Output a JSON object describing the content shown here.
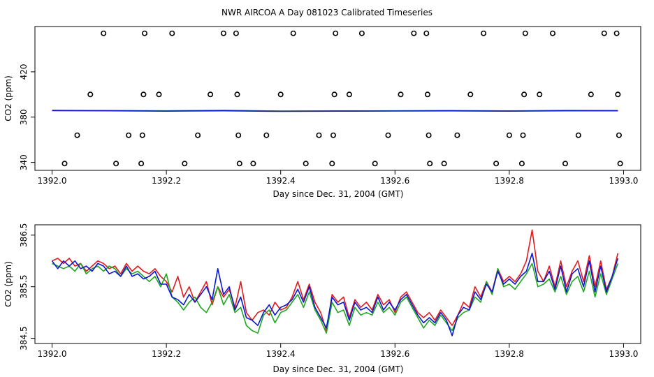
{
  "title": "NWR AIRCOA A  Day 081023  Calibrated Timeseries",
  "chart_data": [
    {
      "type": "scatter+line",
      "xlabel": "Day since Dec. 31, 2004 (GMT)",
      "ylabel": "CO2 (ppm)",
      "xlim": [
        1391.97,
        1393.03
      ],
      "ylim": [
        333,
        460
      ],
      "xticks": [
        1392.0,
        1392.2,
        1392.4,
        1392.6,
        1392.8,
        1393.0
      ],
      "xtick_labels": [
        "1392.0",
        "1392.2",
        "1392.4",
        "1392.6",
        "1392.8",
        "1393.0"
      ],
      "yticks": [
        340,
        380,
        420
      ],
      "ytick_labels": [
        "340",
        "380",
        "420"
      ],
      "points": [
        {
          "x": 1392.022,
          "y": 339
        },
        {
          "x": 1392.044,
          "y": 364
        },
        {
          "x": 1392.067,
          "y": 400
        },
        {
          "x": 1392.09,
          "y": 454
        },
        {
          "x": 1392.112,
          "y": 339
        },
        {
          "x": 1392.134,
          "y": 364
        },
        {
          "x": 1392.156,
          "y": 339
        },
        {
          "x": 1392.158,
          "y": 364
        },
        {
          "x": 1392.16,
          "y": 400
        },
        {
          "x": 1392.162,
          "y": 454
        },
        {
          "x": 1392.187,
          "y": 400
        },
        {
          "x": 1392.21,
          "y": 454
        },
        {
          "x": 1392.232,
          "y": 339
        },
        {
          "x": 1392.255,
          "y": 364
        },
        {
          "x": 1392.277,
          "y": 400
        },
        {
          "x": 1392.3,
          "y": 454
        },
        {
          "x": 1392.322,
          "y": 454
        },
        {
          "x": 1392.324,
          "y": 400
        },
        {
          "x": 1392.326,
          "y": 364
        },
        {
          "x": 1392.328,
          "y": 339
        },
        {
          "x": 1392.352,
          "y": 339
        },
        {
          "x": 1392.375,
          "y": 364
        },
        {
          "x": 1392.4,
          "y": 400
        },
        {
          "x": 1392.422,
          "y": 454
        },
        {
          "x": 1392.444,
          "y": 339
        },
        {
          "x": 1392.467,
          "y": 364
        },
        {
          "x": 1392.49,
          "y": 339
        },
        {
          "x": 1392.492,
          "y": 364
        },
        {
          "x": 1392.494,
          "y": 400
        },
        {
          "x": 1392.496,
          "y": 454
        },
        {
          "x": 1392.52,
          "y": 400
        },
        {
          "x": 1392.542,
          "y": 454
        },
        {
          "x": 1392.565,
          "y": 339
        },
        {
          "x": 1392.588,
          "y": 364
        },
        {
          "x": 1392.61,
          "y": 400
        },
        {
          "x": 1392.633,
          "y": 454
        },
        {
          "x": 1392.655,
          "y": 454
        },
        {
          "x": 1392.657,
          "y": 400
        },
        {
          "x": 1392.659,
          "y": 364
        },
        {
          "x": 1392.661,
          "y": 339
        },
        {
          "x": 1392.686,
          "y": 339
        },
        {
          "x": 1392.709,
          "y": 364
        },
        {
          "x": 1392.732,
          "y": 400
        },
        {
          "x": 1392.755,
          "y": 454
        },
        {
          "x": 1392.777,
          "y": 339
        },
        {
          "x": 1392.8,
          "y": 364
        },
        {
          "x": 1392.822,
          "y": 339
        },
        {
          "x": 1392.824,
          "y": 364
        },
        {
          "x": 1392.826,
          "y": 400
        },
        {
          "x": 1392.828,
          "y": 454
        },
        {
          "x": 1392.853,
          "y": 400
        },
        {
          "x": 1392.876,
          "y": 454
        },
        {
          "x": 1392.898,
          "y": 339
        },
        {
          "x": 1392.921,
          "y": 364
        },
        {
          "x": 1392.943,
          "y": 400
        },
        {
          "x": 1392.966,
          "y": 454
        },
        {
          "x": 1392.988,
          "y": 454
        },
        {
          "x": 1392.99,
          "y": 400
        },
        {
          "x": 1392.992,
          "y": 364
        },
        {
          "x": 1392.994,
          "y": 339
        }
      ],
      "baseline": {
        "x": [
          1392.0,
          1392.1,
          1392.2,
          1392.3,
          1392.4,
          1392.5,
          1392.6,
          1392.7,
          1392.8,
          1392.9,
          1392.99
        ],
        "series": [
          {
            "name": "red",
            "color": "#e41a1c",
            "values": [
              386,
              385.8,
              385.6,
              386,
              385.4,
              385.5,
              385.6,
              385.8,
              385.5,
              385.9,
              385.8
            ]
          },
          {
            "name": "green",
            "color": "#1fa81f",
            "values": [
              385.9,
              385.7,
              385.5,
              385.8,
              385.3,
              385.4,
              385.5,
              385.6,
              385.4,
              385.7,
              385.7
            ]
          },
          {
            "name": "blue",
            "color": "#0a18d6",
            "values": [
              385.8,
              385.6,
              385.3,
              385.6,
              385.1,
              385.3,
              385.4,
              385.5,
              385.3,
              385.6,
              385.6
            ]
          }
        ]
      }
    },
    {
      "type": "line",
      "xlabel": "Day since Dec. 31, 2004 (GMT)",
      "ylabel": "CO2 (ppm)",
      "xlim": [
        1391.97,
        1393.03
      ],
      "ylim": [
        384.4,
        386.7
      ],
      "xticks": [
        1392.0,
        1392.2,
        1392.4,
        1392.6,
        1392.8,
        1393.0
      ],
      "xtick_labels": [
        "1392.0",
        "1392.2",
        "1392.4",
        "1392.6",
        "1392.8",
        "1393.0"
      ],
      "yticks": [
        384.5,
        385.5,
        386.5
      ],
      "ytick_labels": [
        "384.5",
        "385.5",
        "386.5"
      ],
      "x": [
        1392.0,
        1392.01,
        1392.02,
        1392.03,
        1392.04,
        1392.05,
        1392.06,
        1392.07,
        1392.08,
        1392.09,
        1392.1,
        1392.11,
        1392.12,
        1392.13,
        1392.14,
        1392.15,
        1392.16,
        1392.17,
        1392.18,
        1392.19,
        1392.2,
        1392.21,
        1392.22,
        1392.23,
        1392.24,
        1392.25,
        1392.26,
        1392.27,
        1392.28,
        1392.29,
        1392.3,
        1392.31,
        1392.32,
        1392.33,
        1392.34,
        1392.35,
        1392.36,
        1392.37,
        1392.38,
        1392.39,
        1392.4,
        1392.41,
        1392.42,
        1392.43,
        1392.44,
        1392.45,
        1392.46,
        1392.47,
        1392.48,
        1392.49,
        1392.5,
        1392.51,
        1392.52,
        1392.53,
        1392.54,
        1392.55,
        1392.56,
        1392.57,
        1392.58,
        1392.59,
        1392.6,
        1392.61,
        1392.62,
        1392.63,
        1392.64,
        1392.65,
        1392.66,
        1392.67,
        1392.68,
        1392.69,
        1392.7,
        1392.71,
        1392.72,
        1392.73,
        1392.74,
        1392.75,
        1392.76,
        1392.77,
        1392.78,
        1392.79,
        1392.8,
        1392.81,
        1392.82,
        1392.83,
        1392.84,
        1392.85,
        1392.86,
        1392.87,
        1392.88,
        1392.89,
        1392.9,
        1392.91,
        1392.92,
        1392.93,
        1392.94,
        1392.95,
        1392.96,
        1392.97,
        1392.98,
        1392.99
      ],
      "series": [
        {
          "name": "red",
          "color": "#e41a1c",
          "values": [
            386.0,
            386.05,
            385.95,
            386.05,
            385.9,
            385.95,
            385.8,
            385.9,
            386.0,
            385.95,
            385.85,
            385.9,
            385.75,
            385.95,
            385.8,
            385.9,
            385.8,
            385.75,
            385.85,
            385.7,
            385.6,
            385.4,
            385.7,
            385.3,
            385.5,
            385.2,
            385.4,
            385.6,
            385.15,
            385.5,
            385.3,
            385.45,
            385.1,
            385.6,
            385.0,
            384.85,
            385.0,
            385.05,
            384.95,
            385.2,
            385.05,
            385.1,
            385.3,
            385.6,
            385.25,
            385.55,
            385.2,
            385.0,
            384.65,
            385.35,
            385.2,
            385.3,
            384.9,
            385.25,
            385.1,
            385.2,
            385.05,
            385.35,
            385.15,
            385.25,
            385.0,
            385.3,
            385.4,
            385.2,
            385.0,
            384.9,
            385.0,
            384.85,
            385.05,
            384.9,
            384.75,
            384.95,
            385.2,
            385.1,
            385.5,
            385.3,
            385.6,
            385.4,
            385.85,
            385.6,
            385.7,
            385.6,
            385.75,
            386.0,
            386.6,
            385.8,
            385.6,
            385.9,
            385.5,
            386.0,
            385.5,
            385.8,
            386.0,
            385.6,
            386.1,
            385.5,
            386.0,
            385.45,
            385.7,
            386.15
          ]
        },
        {
          "name": "green",
          "color": "#1fa81f",
          "values": [
            385.95,
            385.9,
            385.85,
            385.9,
            385.8,
            385.95,
            385.75,
            385.85,
            385.9,
            385.8,
            385.9,
            385.85,
            385.7,
            385.85,
            385.75,
            385.8,
            385.7,
            385.6,
            385.7,
            385.5,
            385.75,
            385.3,
            385.2,
            385.05,
            385.2,
            385.3,
            385.1,
            385.0,
            385.2,
            385.5,
            385.15,
            385.35,
            385.0,
            385.1,
            384.75,
            384.65,
            384.6,
            384.95,
            385.05,
            384.8,
            385.0,
            385.05,
            385.2,
            385.35,
            385.1,
            385.4,
            385.05,
            384.85,
            384.6,
            385.2,
            385.0,
            385.05,
            384.75,
            385.1,
            384.95,
            385.0,
            384.95,
            385.2,
            385.0,
            385.1,
            384.95,
            385.2,
            385.3,
            385.1,
            384.9,
            384.7,
            384.85,
            384.75,
            384.95,
            384.8,
            384.65,
            384.9,
            385.0,
            385.05,
            385.3,
            385.2,
            385.6,
            385.35,
            385.85,
            385.5,
            385.55,
            385.45,
            385.6,
            385.75,
            385.95,
            385.5,
            385.55,
            385.65,
            385.4,
            385.7,
            385.35,
            385.6,
            385.7,
            385.4,
            385.8,
            385.3,
            385.75,
            385.35,
            385.65,
            385.95
          ]
        },
        {
          "name": "blue",
          "color": "#0a18d6",
          "values": [
            386.0,
            385.85,
            386.0,
            385.9,
            386.0,
            385.85,
            385.9,
            385.8,
            385.95,
            385.9,
            385.75,
            385.8,
            385.7,
            385.9,
            385.7,
            385.75,
            385.65,
            385.7,
            385.8,
            385.55,
            385.55,
            385.3,
            385.25,
            385.15,
            385.35,
            385.2,
            385.35,
            385.5,
            385.25,
            385.85,
            385.35,
            385.5,
            385.05,
            385.3,
            384.9,
            384.85,
            384.75,
            385.0,
            385.15,
            384.95,
            385.1,
            385.15,
            385.25,
            385.45,
            385.2,
            385.5,
            385.1,
            384.9,
            384.7,
            385.3,
            385.15,
            385.2,
            384.85,
            385.2,
            385.05,
            385.1,
            385.0,
            385.3,
            385.05,
            385.2,
            385.05,
            385.25,
            385.35,
            385.15,
            384.95,
            384.8,
            384.9,
            384.8,
            385.0,
            384.85,
            384.55,
            384.95,
            385.1,
            385.05,
            385.4,
            385.25,
            385.55,
            385.4,
            385.8,
            385.55,
            385.65,
            385.55,
            385.7,
            385.8,
            386.15,
            385.6,
            385.6,
            385.8,
            385.45,
            385.9,
            385.4,
            385.75,
            385.85,
            385.5,
            386.0,
            385.4,
            385.9,
            385.4,
            385.7,
            386.05
          ]
        }
      ]
    }
  ]
}
